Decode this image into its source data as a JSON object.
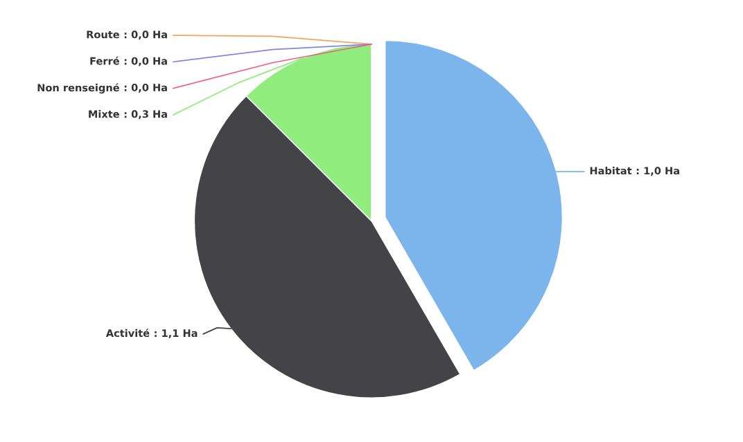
{
  "chart_data": {
    "type": "pie",
    "categories": [
      "Habitat",
      "Activité",
      "Mixte",
      "Non renseigné",
      "Ferré",
      "Route"
    ],
    "values": [
      1.0,
      1.1,
      0.3,
      0.0,
      0.0,
      0.0
    ],
    "value_labels": [
      ": 1,0 Ha",
      ": 1,1 Ha",
      ": 0,3 Ha",
      ": 0,0 Ha",
      ": 0,0 Ha",
      ": 0,0 Ha"
    ],
    "colors": [
      "#7cb5ec",
      "#434348",
      "#90ed7d",
      "#f15c80",
      "#8085e9",
      "#f7a35c"
    ]
  }
}
